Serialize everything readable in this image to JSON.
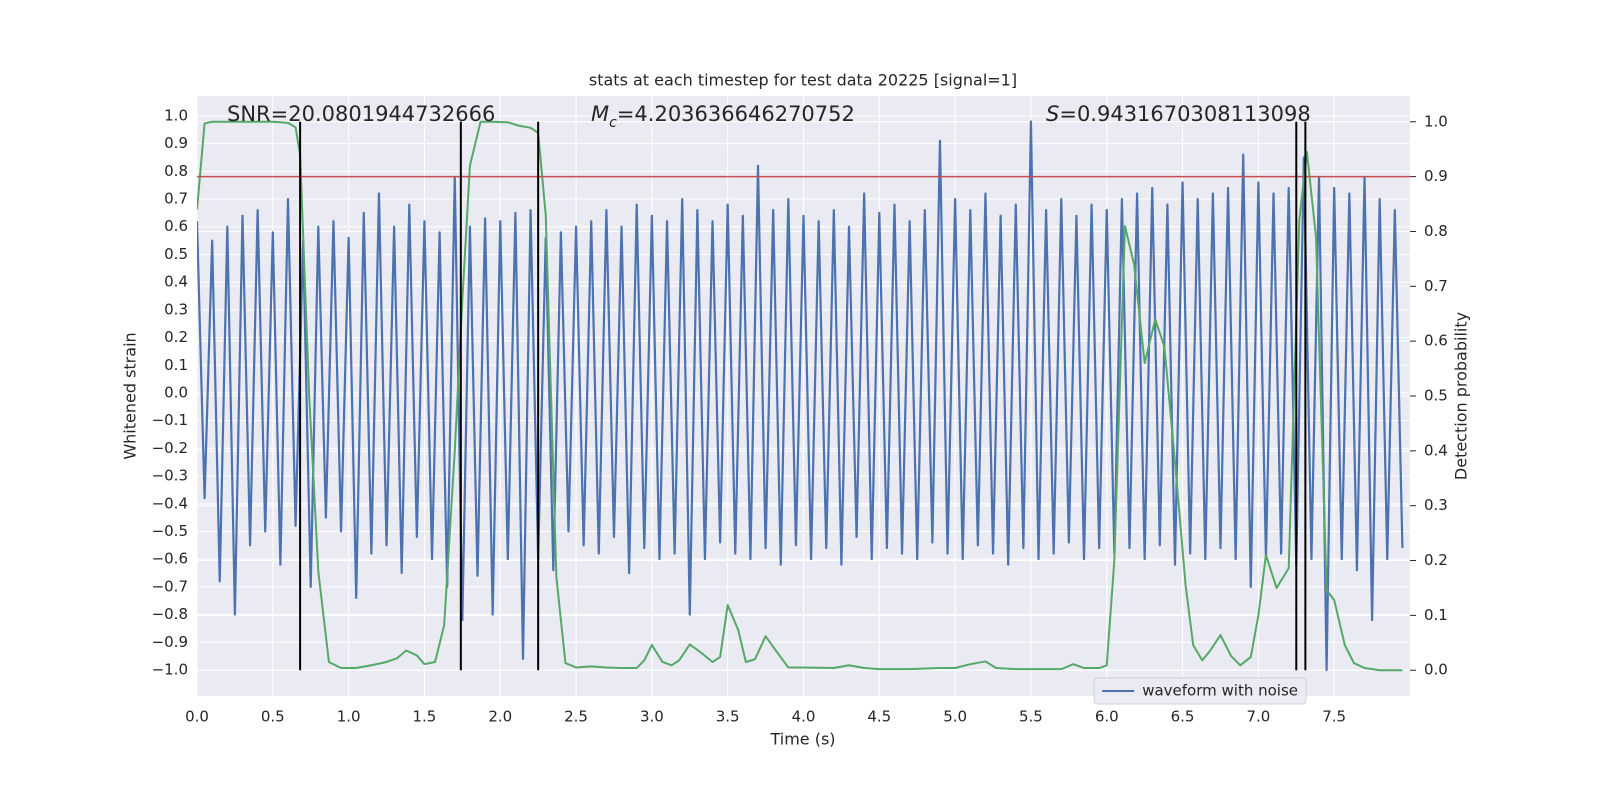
{
  "chart_data": {
    "type": "line",
    "title": "stats at each timestep for test data 20225 [signal=1]",
    "xlabel": "Time (s)",
    "ylabel": "Whitened strain",
    "y2label": "Detection probability",
    "xlim": [
      0,
      8
    ],
    "ylim": [
      -1.094,
      1.072
    ],
    "y2lim": [
      -0.047,
      1.047
    ],
    "grid": true,
    "background": "#eaeaf2",
    "legend": "lower right",
    "xticks": [
      {
        "value": 0,
        "label": "0.0"
      },
      {
        "value": 0.5,
        "label": "0.5"
      },
      {
        "value": 1,
        "label": "1.0"
      },
      {
        "value": 1.5,
        "label": "1.5"
      },
      {
        "value": 2,
        "label": "2.0"
      },
      {
        "value": 2.5,
        "label": "2.5"
      },
      {
        "value": 3,
        "label": "3.0"
      },
      {
        "value": 3.5,
        "label": "3.5"
      },
      {
        "value": 4,
        "label": "4.0"
      },
      {
        "value": 4.5,
        "label": "4.5"
      },
      {
        "value": 5,
        "label": "5.0"
      },
      {
        "value": 5.5,
        "label": "5.5"
      },
      {
        "value": 6,
        "label": "6.0"
      },
      {
        "value": 6.5,
        "label": "6.5"
      },
      {
        "value": 7,
        "label": "7.0"
      },
      {
        "value": 7.5,
        "label": "7.5"
      }
    ],
    "yticks": [
      {
        "value": -1,
        "label": "−1.0"
      },
      {
        "value": -0.9,
        "label": "−0.9"
      },
      {
        "value": -0.8,
        "label": "−0.8"
      },
      {
        "value": -0.7,
        "label": "−0.7"
      },
      {
        "value": -0.6,
        "label": "−0.6"
      },
      {
        "value": -0.5,
        "label": "−0.5"
      },
      {
        "value": -0.4,
        "label": "−0.4"
      },
      {
        "value": -0.3,
        "label": "−0.3"
      },
      {
        "value": -0.2,
        "label": "−0.2"
      },
      {
        "value": -0.1,
        "label": "−0.1"
      },
      {
        "value": 0,
        "label": "0.0"
      },
      {
        "value": 0.1,
        "label": "0.1"
      },
      {
        "value": 0.2,
        "label": "0.2"
      },
      {
        "value": 0.3,
        "label": "0.3"
      },
      {
        "value": 0.4,
        "label": "0.4"
      },
      {
        "value": 0.5,
        "label": "0.5"
      },
      {
        "value": 0.6,
        "label": "0.6"
      },
      {
        "value": 0.7,
        "label": "0.7"
      },
      {
        "value": 0.8,
        "label": "0.8"
      },
      {
        "value": 0.9,
        "label": "0.9"
      },
      {
        "value": 1,
        "label": "1.0"
      }
    ],
    "y2ticks": [
      {
        "value": 0,
        "label": "0.0"
      },
      {
        "value": 0.1,
        "label": "0.1"
      },
      {
        "value": 0.2,
        "label": "0.2"
      },
      {
        "value": 0.3,
        "label": "0.3"
      },
      {
        "value": 0.4,
        "label": "0.4"
      },
      {
        "value": 0.5,
        "label": "0.5"
      },
      {
        "value": 0.6,
        "label": "0.6"
      },
      {
        "value": 0.7,
        "label": "0.7"
      },
      {
        "value": 0.8,
        "label": "0.8"
      },
      {
        "value": 0.9,
        "label": "0.9"
      },
      {
        "value": 1,
        "label": "1.0"
      }
    ],
    "series": [
      {
        "name": "waveform with noise",
        "color": "#4c72b0",
        "x": [
          0,
          0.05,
          0.1,
          0.15,
          0.2,
          0.25,
          0.3,
          0.35,
          0.4,
          0.45,
          0.5,
          0.55,
          0.6,
          0.65,
          0.7,
          0.75,
          0.8,
          0.85,
          0.9,
          0.95,
          1,
          1.05,
          1.1,
          1.15,
          1.2,
          1.25,
          1.3,
          1.35,
          1.4,
          1.45,
          1.5,
          1.55,
          1.6,
          1.65,
          1.7,
          1.75,
          1.8,
          1.85,
          1.9,
          1.95,
          2,
          2.05,
          2.1,
          2.15,
          2.2,
          2.25,
          2.3,
          2.35,
          2.4,
          2.45,
          2.5,
          2.55,
          2.6,
          2.65,
          2.7,
          2.75,
          2.8,
          2.85,
          2.9,
          2.95,
          3,
          3.05,
          3.1,
          3.15,
          3.2,
          3.25,
          3.3,
          3.35,
          3.4,
          3.45,
          3.5,
          3.55,
          3.6,
          3.65,
          3.7,
          3.75,
          3.8,
          3.85,
          3.9,
          3.95,
          4,
          4.05,
          4.1,
          4.15,
          4.2,
          4.25,
          4.3,
          4.35,
          4.4,
          4.45,
          4.5,
          4.55,
          4.6,
          4.65,
          4.7,
          4.75,
          4.8,
          4.85,
          4.9,
          4.95,
          5,
          5.05,
          5.1,
          5.15,
          5.2,
          5.25,
          5.3,
          5.35,
          5.4,
          5.45,
          5.5,
          5.55,
          5.6,
          5.65,
          5.7,
          5.75,
          5.8,
          5.85,
          5.9,
          5.95,
          6,
          6.05,
          6.1,
          6.15,
          6.2,
          6.25,
          6.3,
          6.35,
          6.4,
          6.45,
          6.5,
          6.55,
          6.6,
          6.65,
          6.7,
          6.75,
          6.8,
          6.85,
          6.9,
          6.95,
          7,
          7.05,
          7.1,
          7.15,
          7.2,
          7.25,
          7.3,
          7.35,
          7.4,
          7.45,
          7.5,
          7.55,
          7.6,
          7.65,
          7.7,
          7.75,
          7.8,
          7.85,
          7.9,
          7.95
        ],
        "values": [
          0.62,
          -0.38,
          0.55,
          -0.68,
          0.6,
          -0.8,
          0.64,
          -0.55,
          0.66,
          -0.5,
          0.58,
          -0.62,
          0.7,
          -0.48,
          0.55,
          -0.7,
          0.6,
          -0.45,
          0.62,
          -0.5,
          0.56,
          -0.74,
          0.65,
          -0.58,
          0.72,
          -0.55,
          0.6,
          -0.65,
          0.68,
          -0.52,
          0.62,
          -0.6,
          0.58,
          -0.7,
          0.78,
          -0.82,
          0.6,
          -0.66,
          0.63,
          -0.8,
          0.62,
          -0.6,
          0.65,
          -0.96,
          0.66,
          -0.6,
          0.56,
          -0.64,
          0.58,
          -0.5,
          0.6,
          -0.55,
          0.62,
          -0.58,
          0.66,
          -0.52,
          0.6,
          -0.65,
          0.68,
          -0.56,
          0.64,
          -0.6,
          0.62,
          -0.58,
          0.7,
          -0.8,
          0.66,
          -0.6,
          0.62,
          -0.54,
          0.68,
          -0.58,
          0.64,
          -0.6,
          0.82,
          -0.56,
          0.66,
          -0.62,
          0.7,
          -0.55,
          0.64,
          -0.6,
          0.62,
          -0.56,
          0.66,
          -0.62,
          0.6,
          -0.52,
          0.72,
          -0.6,
          0.65,
          -0.56,
          0.68,
          -0.58,
          0.62,
          -0.6,
          0.66,
          -0.54,
          0.91,
          -0.58,
          0.7,
          -0.6,
          0.66,
          -0.55,
          0.72,
          -0.58,
          0.64,
          -0.62,
          0.68,
          -0.56,
          0.98,
          -0.6,
          0.66,
          -0.58,
          0.7,
          -0.54,
          0.64,
          -0.6,
          0.68,
          -0.56,
          0.66,
          -0.58,
          0.7,
          -0.56,
          0.72,
          -0.6,
          0.74,
          -0.55,
          0.68,
          -0.62,
          0.76,
          -0.58,
          0.7,
          -0.6,
          0.72,
          -0.56,
          0.74,
          -0.6,
          0.86,
          -0.7,
          0.76,
          -0.6,
          0.72,
          -0.58,
          0.74,
          -0.62,
          0.85,
          -0.6,
          0.78,
          -1.0,
          0.74,
          -0.6,
          0.72,
          -0.64,
          0.78,
          -0.82,
          0.7,
          -0.6,
          0.66,
          -0.56
        ]
      },
      {
        "color": "#55a868",
        "axis": "y2",
        "x": [
          0,
          0.05,
          0.1,
          0.3,
          0.5,
          0.6,
          0.65,
          0.68,
          0.74,
          0.8,
          0.87,
          0.95,
          1.05,
          1.15,
          1.25,
          1.32,
          1.38,
          1.45,
          1.5,
          1.57,
          1.63,
          1.7,
          1.75,
          1.8,
          1.87,
          1.95,
          2.05,
          2.12,
          2.2,
          2.25,
          2.3,
          2.37,
          2.43,
          2.5,
          2.6,
          2.7,
          2.8,
          2.9,
          2.95,
          3,
          3.07,
          3.13,
          3.18,
          3.25,
          3.32,
          3.4,
          3.45,
          3.5,
          3.57,
          3.62,
          3.68,
          3.75,
          3.82,
          3.9,
          4,
          4.2,
          4.3,
          4.4,
          4.5,
          4.7,
          4.9,
          5,
          5.1,
          5.2,
          5.27,
          5.4,
          5.7,
          5.78,
          5.85,
          5.95,
          6,
          6.05,
          6.12,
          6.18,
          6.25,
          6.32,
          6.38,
          6.45,
          6.52,
          6.57,
          6.63,
          6.68,
          6.75,
          6.82,
          6.88,
          6.95,
          7,
          7.05,
          7.12,
          7.2,
          7.27,
          7.32,
          7.38,
          7.45,
          7.5,
          7.57,
          7.63,
          7.7,
          7.8,
          7.95
        ],
        "values": [
          0.84,
          0.997,
          1.0,
          1.0,
          1.0,
          0.998,
          0.99,
          0.94,
          0.5,
          0.18,
          0.015,
          0.004,
          0.004,
          0.009,
          0.015,
          0.022,
          0.036,
          0.027,
          0.011,
          0.015,
          0.082,
          0.4,
          0.675,
          0.92,
          1.0,
          1.0,
          0.999,
          0.993,
          0.989,
          0.98,
          0.83,
          0.17,
          0.013,
          0.005,
          0.007,
          0.005,
          0.004,
          0.004,
          0.018,
          0.046,
          0.015,
          0.009,
          0.018,
          0.047,
          0.033,
          0.015,
          0.024,
          0.119,
          0.073,
          0.015,
          0.02,
          0.062,
          0.035,
          0.005,
          0.005,
          0.004,
          0.009,
          0.004,
          0.002,
          0.002,
          0.004,
          0.004,
          0.011,
          0.016,
          0.004,
          0.002,
          0.002,
          0.011,
          0.004,
          0.004,
          0.009,
          0.2,
          0.81,
          0.74,
          0.56,
          0.64,
          0.59,
          0.38,
          0.155,
          0.046,
          0.018,
          0.035,
          0.064,
          0.026,
          0.009,
          0.024,
          0.1,
          0.21,
          0.15,
          0.186,
          0.82,
          0.945,
          0.79,
          0.146,
          0.128,
          0.046,
          0.013,
          0.004,
          0.0,
          0.0
        ]
      }
    ],
    "hlines": [
      {
        "value": 0.9,
        "axis": "y2",
        "color": "#c44e52"
      }
    ],
    "vlines": {
      "x": [
        0.68,
        1.74,
        2.25,
        7.25,
        7.31
      ],
      "ymin": 0,
      "ymax": 1,
      "axis": "y2",
      "color": "#000000"
    },
    "annotations": [
      {
        "text": "SNR=20.0801944732666"
      },
      {
        "symbol": "M",
        "subscript": "c",
        "text": "=4.203636646270752"
      },
      {
        "symbol": "S",
        "text": "=0.9431670308113098"
      }
    ]
  }
}
